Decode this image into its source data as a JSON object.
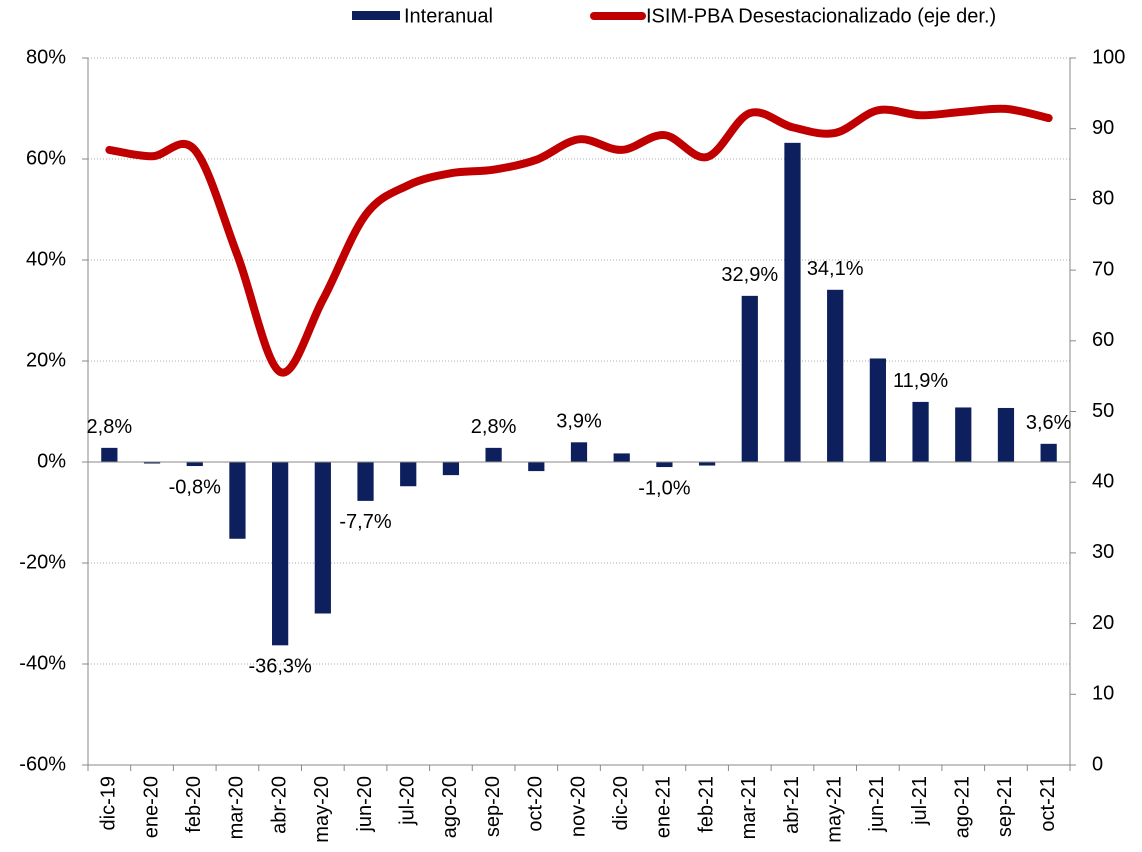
{
  "chart_data": {
    "type": "bar+line",
    "categories": [
      "dic-19",
      "ene-20",
      "feb-20",
      "mar-20",
      "abr-20",
      "may-20",
      "jun-20",
      "jul-20",
      "ago-20",
      "sep-20",
      "oct-20",
      "nov-20",
      "dic-20",
      "ene-21",
      "feb-21",
      "mar-21",
      "abr-21",
      "may-21",
      "jun-21",
      "jul-21",
      "ago-21",
      "sep-21",
      "oct-21"
    ],
    "series": [
      {
        "name": "Interanual",
        "type": "bar",
        "color": "#0d1f5c",
        "values": [
          2.8,
          -0.3,
          -0.8,
          -15.2,
          -36.3,
          -30,
          -7.7,
          -4.8,
          -2.6,
          2.8,
          -1.8,
          3.9,
          1.7,
          -1.0,
          -0.7,
          32.9,
          63.2,
          34.1,
          20.5,
          11.9,
          10.8,
          10.7,
          3.6
        ],
        "value_labels": [
          "2,8%",
          null,
          "-0,8%",
          null,
          "-36,3%",
          null,
          "-7,7%",
          null,
          null,
          "2,8%",
          null,
          "3,9%",
          null,
          "-1,0%",
          null,
          "32,9%",
          null,
          "34,1%",
          null,
          "11,9%",
          null,
          null,
          "3,6%"
        ]
      },
      {
        "name": "ISIM-PBA Desestacionalizado (eje der.)",
        "type": "line",
        "axis": "y2",
        "color": "#c00000",
        "values": [
          87.0,
          86.1,
          87.0,
          72.1,
          55.6,
          65.8,
          77.8,
          82.0,
          83.7,
          84.2,
          85.6,
          88.5,
          87.0,
          89.1,
          86.0,
          92.2,
          90.2,
          89.4,
          92.6,
          91.9,
          92.4,
          92.8,
          91.5
        ]
      }
    ],
    "ylim": [
      -60,
      80
    ],
    "yticks": [
      {
        "value": -60,
        "label": "-60%"
      },
      {
        "value": -40,
        "label": "-40%"
      },
      {
        "value": -20,
        "label": "-20%"
      },
      {
        "value": 0,
        "label": "0%"
      },
      {
        "value": 20,
        "label": "20%"
      },
      {
        "value": 40,
        "label": "40%"
      },
      {
        "value": 60,
        "label": "60%"
      },
      {
        "value": 80,
        "label": "80%"
      }
    ],
    "y2lim": [
      0,
      100
    ],
    "y2ticks": [
      0,
      10,
      20,
      30,
      40,
      50,
      60,
      70,
      80,
      90,
      100
    ],
    "grid": true
  }
}
